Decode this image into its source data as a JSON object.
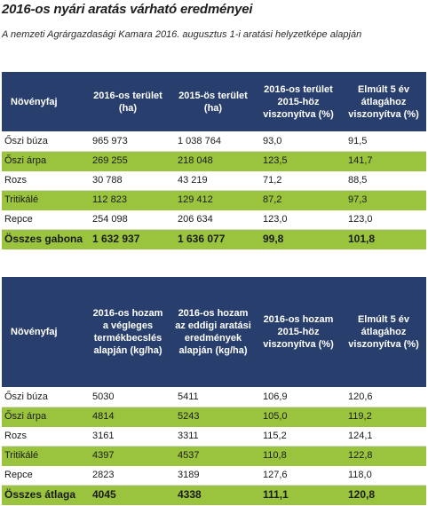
{
  "title": "2016-os nyári aratás várható eredményei",
  "subtitle": "A nemzeti Agrárgazdasági Kamara 2016. augusztus 1-i aratási helyzetképe alapján",
  "colors": {
    "header_bg": "#283e6c",
    "highlight_row": "#9ac43e"
  },
  "area_table": {
    "headers": [
      "Növényfaj",
      "2016-os terület (ha)",
      "2015-ös terület (ha)",
      "2016-os terü­let 2015-höz viszonyítva (%)",
      "Elmúlt 5 év átlagához viszonyítva (%)"
    ],
    "rows": [
      {
        "crop": "Őszi búza",
        "c2016": "965 973",
        "c2015": "1 038 764",
        "vs2015": "93,0",
        "vs5y": "91,5"
      },
      {
        "crop": "Őszi árpa",
        "c2016": "269 255",
        "c2015": "218 048",
        "vs2015": "123,5",
        "vs5y": "141,7"
      },
      {
        "crop": "Rozs",
        "c2016": "30 788",
        "c2015": "43 219",
        "vs2015": "71,2",
        "vs5y": "88,5"
      },
      {
        "crop": "Tritikálé",
        "c2016": "112 823",
        "c2015": "129 412",
        "vs2015": "87,2",
        "vs5y": "97,3"
      },
      {
        "crop": "Repce",
        "c2016": "254 098",
        "c2015": "206 634",
        "vs2015": "123,0",
        "vs5y": "123,0"
      }
    ],
    "total": {
      "crop": "Összes gabona",
      "c2016": "1 632 937",
      "c2015": "1 636 077",
      "vs2015": "99,8",
      "vs5y": "101,8"
    }
  },
  "yield_table": {
    "headers": [
      "Növényfaj",
      "2016-os hozam a végleges termékbecs­lés alapján (kg/ha)",
      "2016-os hozam az eddigi aratási eredmények alapján (kg/ha)",
      "2016-os hozam 2015-höz viszonyítva (%)",
      "Elmúlt 5 év átlagához viszonyítva (%)"
    ],
    "rows": [
      {
        "crop": "Őszi búza",
        "c2016": "5030",
        "c2015": "5411",
        "vs2015": "106,9",
        "vs5y": "120,6"
      },
      {
        "crop": "Őszi árpa",
        "c2016": "4814",
        "c2015": "5243",
        "vs2015": "105,0",
        "vs5y": "119,2"
      },
      {
        "crop": "Rozs",
        "c2016": "3161",
        "c2015": "3311",
        "vs2015": "115,2",
        "vs5y": "124,1"
      },
      {
        "crop": "Tritikálé",
        "c2016": "4397",
        "c2015": "4537",
        "vs2015": "110,8",
        "vs5y": "122,8"
      },
      {
        "crop": "Repce",
        "c2016": "2823",
        "c2015": "3189",
        "vs2015": "127,6",
        "vs5y": "118,0"
      }
    ],
    "total": {
      "crop": "Összes átlaga",
      "c2016": "4045",
      "c2015": "4338",
      "vs2015": "111,1",
      "vs5y": "120,8"
    }
  }
}
